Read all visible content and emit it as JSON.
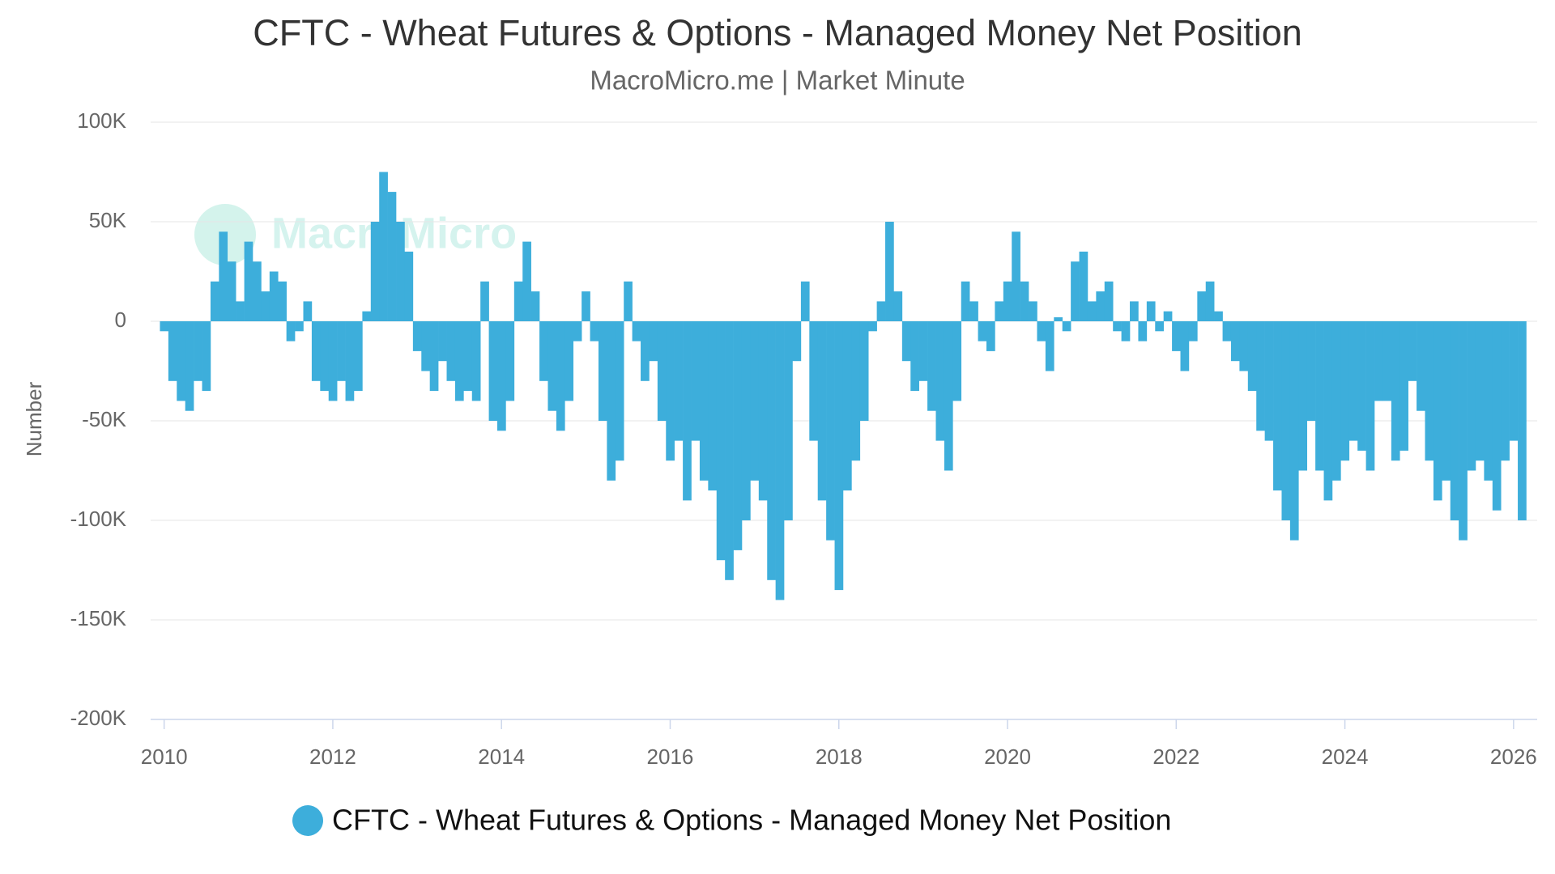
{
  "chart_data": {
    "type": "bar",
    "title": "CFTC - Wheat Futures & Options - Managed Money Net Position",
    "subtitle": "MacroMicro.me | Market Minute",
    "watermark": "MacroMicro",
    "y_label": "Number",
    "grid": true,
    "legend": "bottom",
    "xlim": [
      2009.84,
      2026.28
    ],
    "xticks": [
      2010,
      2012,
      2014,
      2016,
      2018,
      2020,
      2022,
      2024,
      2026
    ],
    "ylim": [
      -200000,
      100000
    ],
    "yticks": [
      {
        "value": -200000,
        "label": "-200K"
      },
      {
        "value": -150000,
        "label": "-150K"
      },
      {
        "value": -100000,
        "label": "-100K"
      },
      {
        "value": -50000,
        "label": "-50K"
      },
      0,
      {
        "value": 50000,
        "label": "50K"
      },
      {
        "value": 100000,
        "label": "100K"
      }
    ],
    "x": [
      2010.0,
      2010.1,
      2010.2,
      2010.3,
      2010.4,
      2010.5,
      2010.6,
      2010.7,
      2010.8,
      2010.9,
      2011.0,
      2011.1,
      2011.2,
      2011.3,
      2011.4,
      2011.5,
      2011.6,
      2011.7,
      2011.8,
      2011.9,
      2012.0,
      2012.1,
      2012.2,
      2012.3,
      2012.4,
      2012.5,
      2012.6,
      2012.7,
      2012.8,
      2012.9,
      2013.0,
      2013.1,
      2013.2,
      2013.3,
      2013.4,
      2013.5,
      2013.6,
      2013.7,
      2013.8,
      2013.9,
      2014.0,
      2014.1,
      2014.2,
      2014.3,
      2014.4,
      2014.5,
      2014.6,
      2014.7,
      2014.8,
      2014.9,
      2015.0,
      2015.1,
      2015.2,
      2015.3,
      2015.4,
      2015.5,
      2015.6,
      2015.7,
      2015.8,
      2015.9,
      2016.0,
      2016.1,
      2016.2,
      2016.3,
      2016.4,
      2016.5,
      2016.6,
      2016.7,
      2016.8,
      2016.9,
      2017.0,
      2017.1,
      2017.2,
      2017.3,
      2017.4,
      2017.5,
      2017.6,
      2017.7,
      2017.8,
      2017.9,
      2018.0,
      2018.1,
      2018.2,
      2018.3,
      2018.4,
      2018.5,
      2018.6,
      2018.7,
      2018.8,
      2018.9,
      2019.0,
      2019.1,
      2019.2,
      2019.3,
      2019.4,
      2019.5,
      2019.6,
      2019.7,
      2019.8,
      2019.9,
      2020.0,
      2020.1,
      2020.2,
      2020.3,
      2020.4,
      2020.5,
      2020.6,
      2020.7,
      2020.8,
      2020.9,
      2021.0,
      2021.1,
      2021.2,
      2021.3,
      2021.4,
      2021.5,
      2021.6,
      2021.7,
      2021.8,
      2021.9,
      2022.0,
      2022.1,
      2022.2,
      2022.3,
      2022.4,
      2022.5,
      2022.6,
      2022.7,
      2022.8,
      2022.9,
      2023.0,
      2023.1,
      2023.2,
      2023.3,
      2023.4,
      2023.5,
      2023.6,
      2023.7,
      2023.8,
      2023.9,
      2024.0,
      2024.1,
      2024.2,
      2024.3,
      2024.4,
      2024.5,
      2024.6,
      2024.7,
      2024.8,
      2024.9,
      2025.0,
      2025.1,
      2025.2,
      2025.3,
      2025.4,
      2025.5,
      2025.6,
      2025.7,
      2025.8,
      2025.9,
      2026.0,
      2026.1
    ],
    "series": [
      {
        "name": "CFTC - Wheat Futures & Options - Managed Money Net Position",
        "color": "#3daedb",
        "values": [
          -5000,
          -30000,
          -40000,
          -45000,
          -30000,
          -35000,
          20000,
          45000,
          30000,
          10000,
          40000,
          30000,
          15000,
          25000,
          20000,
          -10000,
          -5000,
          10000,
          -30000,
          -35000,
          -40000,
          -30000,
          -40000,
          -35000,
          5000,
          50000,
          75000,
          65000,
          50000,
          35000,
          -15000,
          -25000,
          -35000,
          -20000,
          -30000,
          -40000,
          -35000,
          -40000,
          20000,
          -50000,
          -55000,
          -40000,
          20000,
          40000,
          15000,
          -30000,
          -45000,
          -55000,
          -40000,
          -10000,
          15000,
          -10000,
          -50000,
          -80000,
          -70000,
          20000,
          -10000,
          -30000,
          -20000,
          -50000,
          -70000,
          -60000,
          -90000,
          -60000,
          -80000,
          -85000,
          -120000,
          -130000,
          -115000,
          -100000,
          -80000,
          -90000,
          -130000,
          -140000,
          -100000,
          -20000,
          20000,
          -60000,
          -90000,
          -110000,
          -135000,
          -85000,
          -70000,
          -50000,
          -5000,
          10000,
          50000,
          15000,
          -20000,
          -35000,
          -30000,
          -45000,
          -60000,
          -75000,
          -40000,
          20000,
          10000,
          -10000,
          -15000,
          10000,
          20000,
          45000,
          20000,
          10000,
          -10000,
          -25000,
          2000,
          -5000,
          30000,
          35000,
          10000,
          15000,
          20000,
          -5000,
          -10000,
          10000,
          -10000,
          10000,
          -5000,
          5000,
          -15000,
          -25000,
          -10000,
          15000,
          20000,
          5000,
          -10000,
          -20000,
          -25000,
          -35000,
          -55000,
          -60000,
          -85000,
          -100000,
          -110000,
          -75000,
          -50000,
          -75000,
          -90000,
          -80000,
          -70000,
          -60000,
          -65000,
          -75000,
          -40000,
          -40000,
          -70000,
          -65000,
          -30000,
          -45000,
          -70000,
          -90000,
          -80000,
          -100000,
          -110000,
          -75000,
          -70000,
          -80000,
          -95000,
          -70000,
          -60000,
          -100000
        ]
      }
    ]
  }
}
